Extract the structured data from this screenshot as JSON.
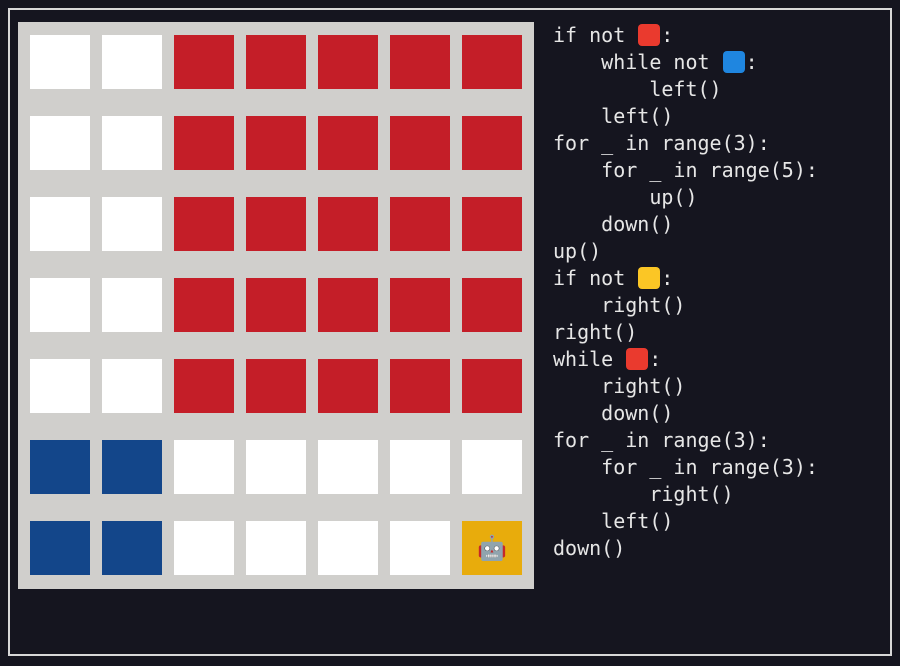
{
  "board": {
    "rows": [
      [
        "white",
        "white",
        "red",
        "red",
        "red",
        "red",
        "red"
      ],
      [
        "white",
        "white",
        "red",
        "red",
        "red",
        "red",
        "red"
      ],
      [
        "white",
        "white",
        "red",
        "red",
        "red",
        "red",
        "red"
      ],
      [
        "white",
        "white",
        "red",
        "red",
        "red",
        "red",
        "red"
      ],
      [
        "white",
        "white",
        "red",
        "red",
        "red",
        "red",
        "red"
      ],
      [
        "blue",
        "blue",
        "white",
        "white",
        "white",
        "white",
        "white"
      ],
      [
        "blue",
        "blue",
        "white",
        "white",
        "white",
        "white",
        "yellow"
      ]
    ],
    "robot": {
      "row": 6,
      "col": 6,
      "glyph": "🤖"
    },
    "colors": {
      "board_bg": "#d0cfcc",
      "white": "#ffffff",
      "red": "#c41e28",
      "blue": "#13468a",
      "yellow": "#e8ac0c"
    }
  },
  "code": {
    "lines": [
      {
        "indent": 0,
        "text": "if not ",
        "swatch": "red",
        "after": ":"
      },
      {
        "indent": 1,
        "text": "while not ",
        "swatch": "blue",
        "after": ":"
      },
      {
        "indent": 2,
        "text": "left()"
      },
      {
        "indent": 1,
        "text": "left()"
      },
      {
        "indent": 0,
        "text": "for _ in range(3):"
      },
      {
        "indent": 1,
        "text": "for _ in range(5):"
      },
      {
        "indent": 2,
        "text": "up()"
      },
      {
        "indent": 1,
        "text": "down()"
      },
      {
        "indent": 0,
        "text": "up()"
      },
      {
        "indent": 0,
        "text": "if not ",
        "swatch": "yellow",
        "after": ":"
      },
      {
        "indent": 1,
        "text": "right()"
      },
      {
        "indent": 0,
        "text": "right()"
      },
      {
        "indent": 0,
        "text": "while ",
        "swatch": "red",
        "after": ":"
      },
      {
        "indent": 1,
        "text": "right()"
      },
      {
        "indent": 1,
        "text": "down()"
      },
      {
        "indent": 0,
        "text": "for _ in range(3):"
      },
      {
        "indent": 1,
        "text": "for _ in range(3):"
      },
      {
        "indent": 2,
        "text": "right()"
      },
      {
        "indent": 1,
        "text": "left()"
      },
      {
        "indent": 0,
        "text": "down()"
      }
    ],
    "swatch_names": {
      "red": "red-square-icon",
      "blue": "blue-square-icon",
      "yellow": "yellow-square-icon"
    }
  }
}
